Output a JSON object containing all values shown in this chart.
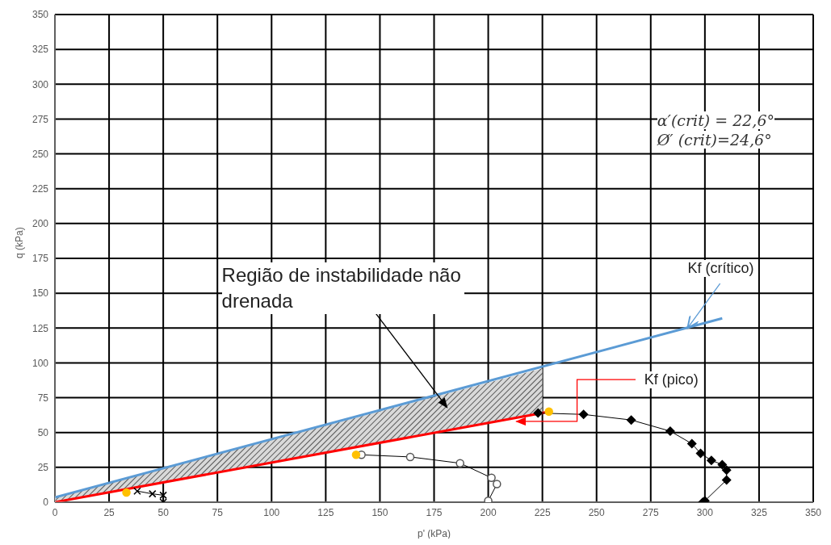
{
  "chart_data": {
    "type": "line",
    "xlabel": "p' (kPa)",
    "ylabel": "q (kPa)",
    "xlim": [
      0,
      350
    ],
    "ylim": [
      0,
      350
    ],
    "xticks": [
      0,
      25,
      50,
      75,
      100,
      125,
      150,
      175,
      200,
      225,
      250,
      275,
      300,
      325,
      350
    ],
    "yticks": [
      0,
      25,
      50,
      75,
      100,
      125,
      150,
      175,
      200,
      225,
      250,
      275,
      300,
      325,
      350
    ],
    "grid": true,
    "legend": false,
    "series": [
      {
        "color": "#5b9bd5",
        "marker": "none",
        "x": [
          0,
          308
        ],
        "values": [
          3.5,
          132
        ]
      },
      {
        "color": "#ff0000",
        "marker": "none",
        "x": [
          0,
          225,
          228
        ],
        "values": [
          0,
          64,
          65
        ],
        "lower": [
          0,
          64,
          null
        ],
        "upper": [
          3.5,
          96,
          null
        ]
      },
      {
        "color": "#000000",
        "marker": "diamond",
        "x": [
          299,
          300,
          310,
          310,
          308,
          303,
          298,
          294,
          284,
          266,
          244,
          223
        ],
        "values": [
          0,
          1,
          16,
          23,
          27,
          30,
          35,
          42,
          51,
          59,
          63,
          64
        ]
      },
      {
        "color": "#000000",
        "marker": "circle",
        "x": [
          200,
          204,
          201.5,
          187,
          164,
          141.5
        ],
        "values": [
          1,
          13,
          17.5,
          28,
          32.5,
          34
        ]
      },
      {
        "color": "#000000",
        "marker": "cross",
        "x": [
          50,
          50,
          45,
          38
        ],
        "values": [
          0,
          5,
          6,
          8
        ]
      },
      {
        "type": "scatter",
        "color": "#ffc000",
        "marker": "circle",
        "x": [
          33,
          139,
          228
        ],
        "values": [
          7,
          34,
          65
        ]
      }
    ],
    "annotations": [
      "Região de instabilidade não drenada",
      {
        "text": "Kf (crítico)",
        "x": 292,
        "y": 125
      },
      {
        "text": "Kf (pico)",
        "x": 213,
        "y": 58
      },
      "α′(crit) = 22,6°",
      "Ø′ (crit)=24,6°"
    ]
  }
}
